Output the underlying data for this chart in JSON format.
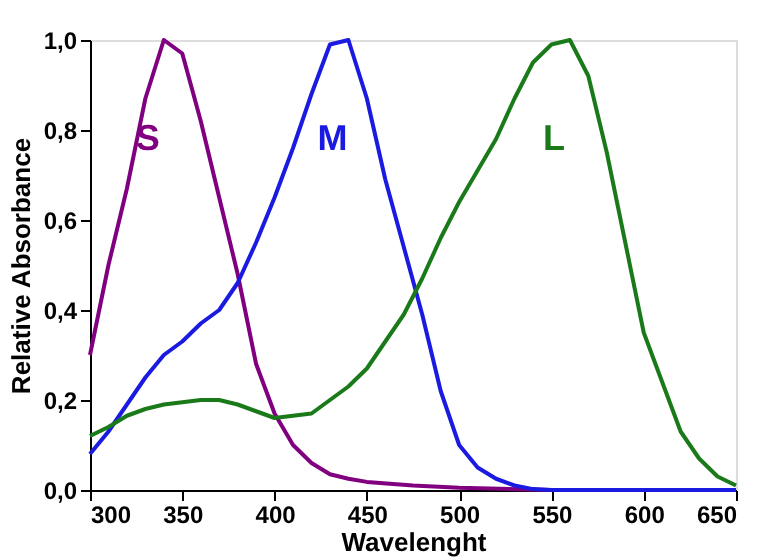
{
  "chart_data": {
    "type": "line",
    "xlabel": "Wavelenght",
    "ylabel": "Relative Absorbance",
    "xlim": [
      300,
      650
    ],
    "xticks": [
      300,
      350,
      400,
      450,
      500,
      550,
      600,
      650
    ],
    "ylim": [
      0,
      1
    ],
    "yticks": [
      {
        "value": 0,
        "label": "0,0"
      },
      {
        "value": 0.2,
        "label": "0,2"
      },
      {
        "value": 0.4,
        "label": "0,4"
      },
      {
        "value": 0.6,
        "label": "0,6"
      },
      {
        "value": 0.8,
        "label": "0,8"
      },
      {
        "value": 1,
        "label": "1,0"
      }
    ],
    "grid": false,
    "legend": false,
    "marker": "none",
    "line_style": "solid",
    "series": [
      {
        "name": "S",
        "color": "#800080",
        "x": [
          300,
          310,
          320,
          330,
          340,
          350,
          360,
          370,
          380,
          390,
          400,
          410,
          420,
          430,
          440,
          450,
          475,
          500,
          550,
          600,
          650
        ],
        "values": [
          0.3,
          0.5,
          0.67,
          0.87,
          1.0,
          0.97,
          0.82,
          0.65,
          0.48,
          0.28,
          0.17,
          0.1,
          0.06,
          0.035,
          0.025,
          0.018,
          0.01,
          0.005,
          0,
          0,
          0
        ]
      },
      {
        "name": "M",
        "color": "#1a1ae0",
        "x": [
          300,
          310,
          320,
          330,
          340,
          350,
          360,
          370,
          380,
          390,
          400,
          410,
          420,
          430,
          440,
          450,
          460,
          470,
          480,
          490,
          500,
          510,
          520,
          530,
          540,
          550,
          600,
          650
        ],
        "values": [
          0.08,
          0.13,
          0.19,
          0.25,
          0.3,
          0.33,
          0.37,
          0.4,
          0.46,
          0.55,
          0.65,
          0.76,
          0.88,
          0.99,
          1.0,
          0.87,
          0.69,
          0.54,
          0.39,
          0.22,
          0.1,
          0.05,
          0.025,
          0.01,
          0.002,
          0,
          0,
          0
        ]
      },
      {
        "name": "L",
        "color": "#1a7a1a",
        "x": [
          300,
          310,
          320,
          330,
          340,
          350,
          360,
          370,
          380,
          390,
          400,
          410,
          420,
          430,
          440,
          450,
          460,
          470,
          480,
          490,
          500,
          510,
          520,
          530,
          540,
          550,
          560,
          570,
          580,
          590,
          600,
          610,
          620,
          630,
          640,
          650
        ],
        "values": [
          0.12,
          0.14,
          0.165,
          0.18,
          0.19,
          0.195,
          0.2,
          0.2,
          0.19,
          0.175,
          0.16,
          0.165,
          0.17,
          0.2,
          0.23,
          0.27,
          0.33,
          0.39,
          0.47,
          0.56,
          0.64,
          0.71,
          0.78,
          0.87,
          0.95,
          0.99,
          1.0,
          0.92,
          0.75,
          0.55,
          0.35,
          0.24,
          0.13,
          0.07,
          0.03,
          0.01
        ]
      }
    ]
  }
}
